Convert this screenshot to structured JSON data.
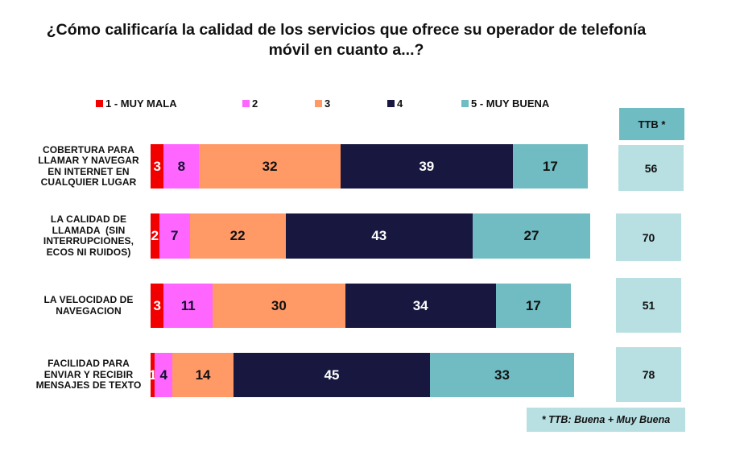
{
  "chart_data": {
    "type": "bar",
    "orientation": "horizontal",
    "stacked": true,
    "title": "¿Cómo calificaría la calidad de los servicios que ofrece su operador de telefonía móvil en cuanto a...?",
    "xlabel": "",
    "ylabel": "",
    "legend_position": "top",
    "grid": false,
    "categories": [
      "COBERTURA PARA LLAMAR Y NAVEGAR EN INTERNET EN CUALQUIER LUGAR",
      "LA CALIDAD DE LLAMADA  (SIN INTERRUPCIONES, ECOS NI RUIDOS)",
      "LA VELOCIDAD DE NAVEGACION",
      "FACILIDAD PARA ENVIAR Y RECIBIR MENSAJES DE TEXTO"
    ],
    "category_lines": [
      [
        "COBERTURA PARA",
        "LLAMAR Y NAVEGAR",
        "EN INTERNET EN",
        "CUALQUIER LUGAR"
      ],
      [
        "LA CALIDAD DE",
        "LLAMADA  (SIN",
        "INTERRUPCIONES,",
        "ECOS NI RUIDOS)"
      ],
      [
        "LA VELOCIDAD DE",
        "NAVEGACION"
      ],
      [
        "FACILIDAD PARA",
        "ENVIAR Y RECIBIR",
        "MENSAJES DE TEXTO"
      ]
    ],
    "series": [
      {
        "name": "1 - MUY MALA",
        "color": "#f20000",
        "label_color": "#ffffff",
        "values": [
          3,
          2,
          3,
          1
        ]
      },
      {
        "name": "2",
        "color": "#ff66ff",
        "label_color": "#111133",
        "values": [
          8,
          7,
          11,
          4
        ]
      },
      {
        "name": "3",
        "color": "#ff9966",
        "label_color": "#111111",
        "values": [
          32,
          22,
          30,
          14
        ]
      },
      {
        "name": "4",
        "color": "#171740",
        "label_color": "#ffffff",
        "values": [
          39,
          43,
          34,
          45
        ]
      },
      {
        "name": "5 - MUY BUENA",
        "color": "#70bcc2",
        "label_color": "#111111",
        "values": [
          17,
          27,
          17,
          33
        ]
      }
    ],
    "ttb": {
      "header": "TTB *",
      "values": [
        56,
        70,
        51,
        78
      ]
    },
    "footnote": "* TTB: Buena + Muy Buena"
  },
  "colors": {
    "ttb_header_bg": "#6fbcc3",
    "ttb_box_bg": "#b8dfe2"
  }
}
